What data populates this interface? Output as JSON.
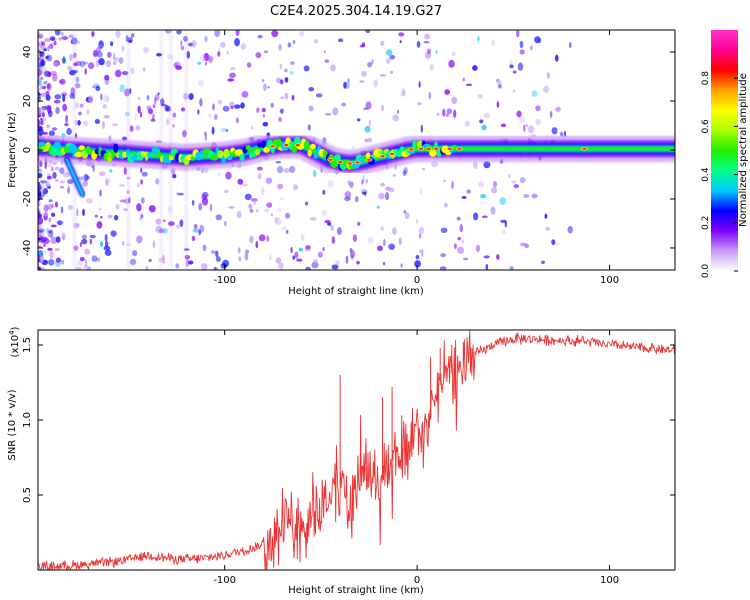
{
  "figure_title": "C2E4.2025.304.14.19.G27",
  "chart_data": [
    {
      "type": "heatmap",
      "title": "C2E4.2025.304.14.19.G27",
      "xlabel": "Height of straight line (km)",
      "ylabel": "Frequency (Hz)",
      "xlim": [
        -197,
        134
      ],
      "ylim": [
        -49,
        49
      ],
      "xticks": [
        -100,
        0,
        100
      ],
      "xtick_labels": [
        "-100",
        "0",
        "100"
      ],
      "yticks": [
        -40,
        -20,
        0,
        20,
        40
      ],
      "ytick_labels": [
        "-40",
        "-20",
        "0",
        "20",
        "40"
      ],
      "ridge": {
        "name": "dominant frequency",
        "x": [
          -193,
          -180,
          -160,
          -140,
          -120,
          -100,
          -90,
          -80,
          -70,
          -60,
          -55,
          -50,
          -45,
          -40,
          -35,
          -30,
          -25,
          -20,
          -15,
          -10,
          -5,
          0,
          10,
          20,
          40,
          60,
          80,
          100,
          120,
          134
        ],
        "y": [
          1,
          0,
          -1,
          -2,
          -3,
          -2,
          -1,
          1,
          2,
          2,
          0,
          -2,
          -4,
          -5,
          -5.5,
          -5,
          -4,
          -3,
          -2,
          -1,
          0,
          0.5,
          0.5,
          0.5,
          0.5,
          0.5,
          0.5,
          0.5,
          0.5,
          0.5
        ]
      },
      "secondary_streak": {
        "x": [
          -182,
          -174
        ],
        "y": [
          -4,
          -18
        ]
      },
      "colorbar": {
        "label": "Normalized spectral amplitude",
        "range": [
          0,
          1
        ],
        "ticks": [
          0.0,
          0.2,
          0.4,
          0.6,
          0.8
        ],
        "tick_labels": [
          "0.0",
          "0.2",
          "0.4",
          "0.6",
          "0.8"
        ],
        "colors": [
          "#ffffff",
          "#c79bf7",
          "#8000ff",
          "#0000ff",
          "#00c8ff",
          "#00ff88",
          "#22ee00",
          "#aaff00",
          "#ffff00",
          "#ffa000",
          "#ff0000",
          "#ff0090",
          "#ff33cc"
        ]
      }
    },
    {
      "type": "line",
      "xlabel": "Height of straight line (km)",
      "ylabel": "SNR (10 * v/v)",
      "y_scale_label": "(x10",
      "y_scale_exp": "4",
      "y_scale_close": ")",
      "xlim": [
        -197,
        134
      ],
      "ylim": [
        0,
        1.6
      ],
      "xticks": [
        -100,
        0,
        100
      ],
      "xtick_labels": [
        "-100",
        "0",
        "100"
      ],
      "yticks": [
        0.5,
        1.0,
        1.5
      ],
      "ytick_labels": [
        "0.5",
        "1.0",
        "1.5"
      ],
      "color": "#ee3333",
      "series": [
        {
          "name": "SNR",
          "x": [
            -197,
            -180,
            -160,
            -150,
            -140,
            -130,
            -120,
            -110,
            -100,
            -90,
            -80,
            -75,
            -70,
            -65,
            -60,
            -55,
            -50,
            -45,
            -40,
            -35,
            -30,
            -25,
            -20,
            -15,
            -10,
            -5,
            0,
            5,
            10,
            15,
            20,
            25,
            30,
            40,
            50,
            60,
            70,
            80,
            90,
            100,
            110,
            120,
            134
          ],
          "y": [
            0.02,
            0.03,
            0.05,
            0.07,
            0.1,
            0.08,
            0.07,
            0.08,
            0.1,
            0.13,
            0.17,
            0.2,
            0.25,
            0.3,
            0.32,
            0.38,
            0.42,
            0.5,
            0.58,
            0.45,
            0.6,
            0.68,
            0.58,
            0.7,
            0.78,
            0.75,
            0.92,
            0.9,
            1.2,
            1.28,
            1.33,
            1.38,
            1.44,
            1.5,
            1.54,
            1.54,
            1.53,
            1.53,
            1.52,
            1.5,
            1.49,
            1.48,
            1.46
          ]
        }
      ],
      "spikes": [
        {
          "x": -40,
          "y": 1.3
        },
        {
          "x": -18,
          "y": 1.15
        },
        {
          "x": -13,
          "y": 1.22
        },
        {
          "x": 7,
          "y": 1.42
        },
        {
          "x": 12,
          "y": 1.48
        },
        {
          "x": 18,
          "y": 1.5
        },
        {
          "x": 24,
          "y": 1.52
        }
      ]
    }
  ]
}
